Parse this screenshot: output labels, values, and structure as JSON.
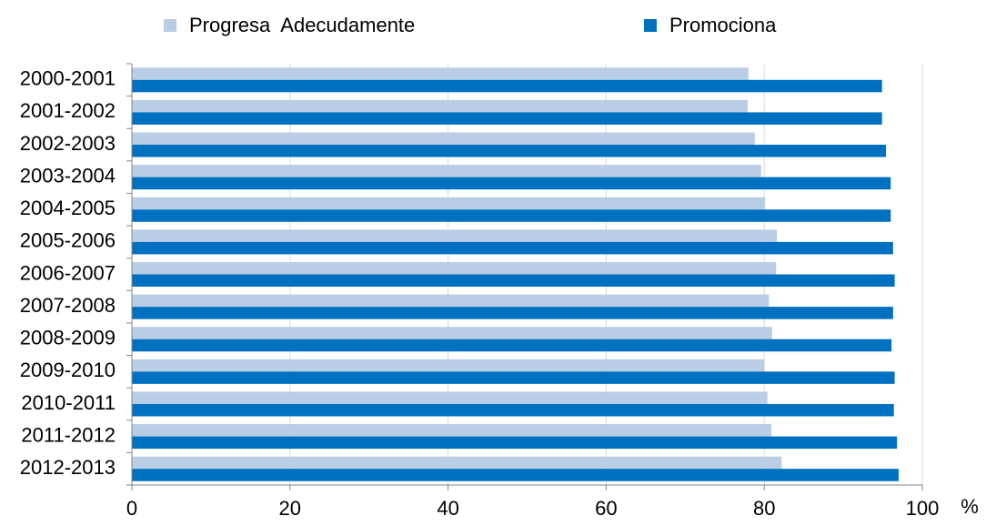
{
  "chart_data": {
    "type": "barh",
    "categories": [
      "2000-2001",
      "2001-2002",
      "2002-2003",
      "2003-2004",
      "2004-2005",
      "2005-2006",
      "2006-2007",
      "2007-2008",
      "2008-2009",
      "2009-2010",
      "2010-2011",
      "2011-2012",
      "2012-2013"
    ],
    "series": [
      {
        "name": "Progresa  Adecudamente",
        "color": "#b9cde5",
        "values": [
          78.0,
          77.9,
          78.8,
          79.6,
          80.1,
          81.6,
          81.5,
          80.6,
          81.0,
          80.0,
          80.4,
          80.9,
          82.2
        ]
      },
      {
        "name": "Promociona",
        "color": "#0070c0",
        "values": [
          94.9,
          94.9,
          95.4,
          96.0,
          96.0,
          96.3,
          96.5,
          96.3,
          96.1,
          96.5,
          96.4,
          96.8,
          97.0
        ]
      }
    ],
    "xlabel": "%",
    "xlim": [
      0,
      100
    ],
    "xticks": [
      0,
      20,
      40,
      60,
      80,
      100
    ],
    "grid": true,
    "legend": "top"
  }
}
